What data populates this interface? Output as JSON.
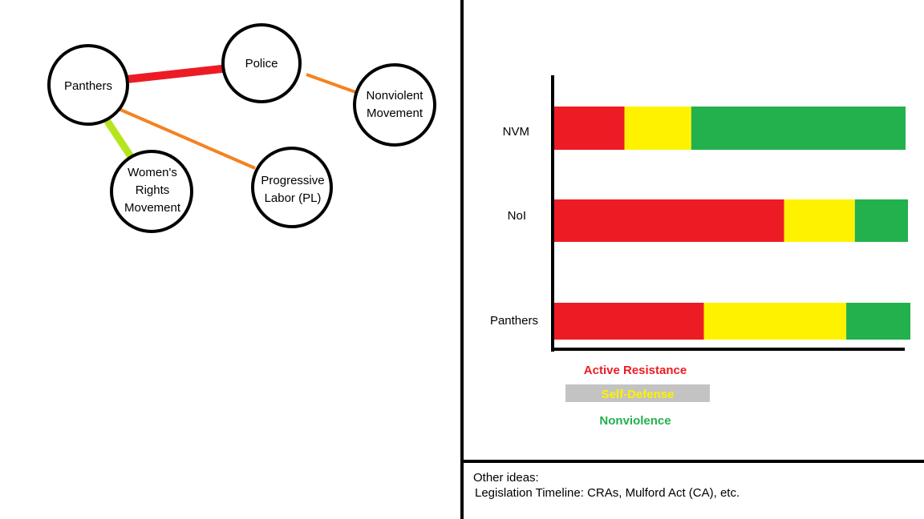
{
  "network_diagram": {
    "nodes": [
      {
        "id": "panthers",
        "lines": [
          "Panthers"
        ]
      },
      {
        "id": "police",
        "lines": [
          "Police"
        ]
      },
      {
        "id": "nonviolent",
        "lines": [
          "Nonviolent",
          "Movement"
        ]
      },
      {
        "id": "womens",
        "lines": [
          "Women's",
          "Rights",
          "Movement"
        ]
      },
      {
        "id": "pl",
        "lines": [
          "Progressive",
          "Labor (PL)"
        ]
      }
    ],
    "links": [
      {
        "from": "panthers",
        "to": "police",
        "color": "#ED1C24"
      },
      {
        "from": "police",
        "to": "nonviolent",
        "color": "#F58220"
      },
      {
        "from": "panthers",
        "to": "womens",
        "color": "#B5E61D"
      },
      {
        "from": "panthers",
        "to": "pl",
        "color": "#F58220"
      }
    ]
  },
  "chart_data": {
    "type": "bar",
    "orientation": "horizontal",
    "stacked": true,
    "categories": [
      "NVM",
      "NoI",
      "Panthers"
    ],
    "series": [
      {
        "name": "Active Resistance",
        "color": "#ED1C24",
        "values": [
          20,
          65,
          42
        ]
      },
      {
        "name": "Self-Defense",
        "color": "#FFF200",
        "values": [
          19,
          20,
          40
        ]
      },
      {
        "name": "Nonviolence",
        "color": "#22B14C",
        "values": [
          61,
          15,
          18
        ]
      }
    ],
    "xlim": [
      0,
      100
    ],
    "legend_position": "bottom",
    "title": "",
    "xlabel": "",
    "ylabel": ""
  },
  "notes": {
    "heading": "Other ideas:",
    "line1": "Legislation Timeline: CRAs, Mulford Act (CA), etc."
  }
}
